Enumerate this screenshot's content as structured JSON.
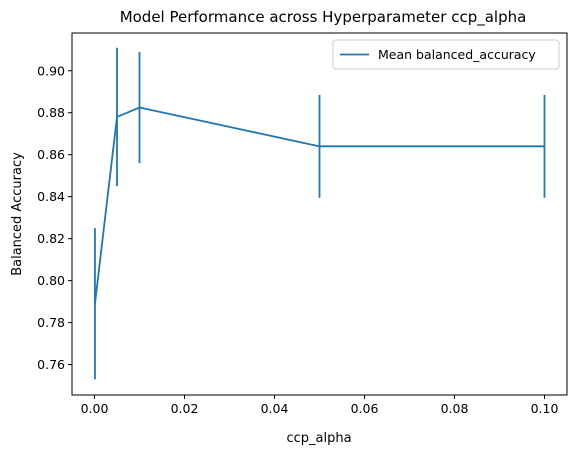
{
  "chart_data": {
    "type": "line",
    "title": "Model Performance across Hyperparameter ccp_alpha",
    "xlabel": "ccp_alpha",
    "ylabel": "Balanced Accuracy",
    "xlim": [
      -0.005,
      0.105
    ],
    "ylim": [
      0.7455,
      0.918
    ],
    "xticks": [
      0.0,
      0.02,
      0.04,
      0.06,
      0.08,
      0.1
    ],
    "xtick_labels": [
      "0.00",
      "0.02",
      "0.04",
      "0.06",
      "0.08",
      "0.10"
    ],
    "yticks": [
      0.76,
      0.78,
      0.8,
      0.82,
      0.84,
      0.86,
      0.88,
      0.9
    ],
    "ytick_labels": [
      "0.76",
      "0.78",
      "0.80",
      "0.82",
      "0.84",
      "0.86",
      "0.88",
      "0.90"
    ],
    "grid": false,
    "legend_position": "top-right",
    "series": [
      {
        "name": "Mean balanced_accuracy",
        "color": "#1f77b4",
        "x": [
          0.0001,
          0.005,
          0.01,
          0.05,
          0.1
        ],
        "y": [
          0.789,
          0.878,
          0.8825,
          0.864,
          0.864
        ],
        "error": [
          0.036,
          0.033,
          0.0265,
          0.0245,
          0.0245
        ]
      }
    ]
  }
}
